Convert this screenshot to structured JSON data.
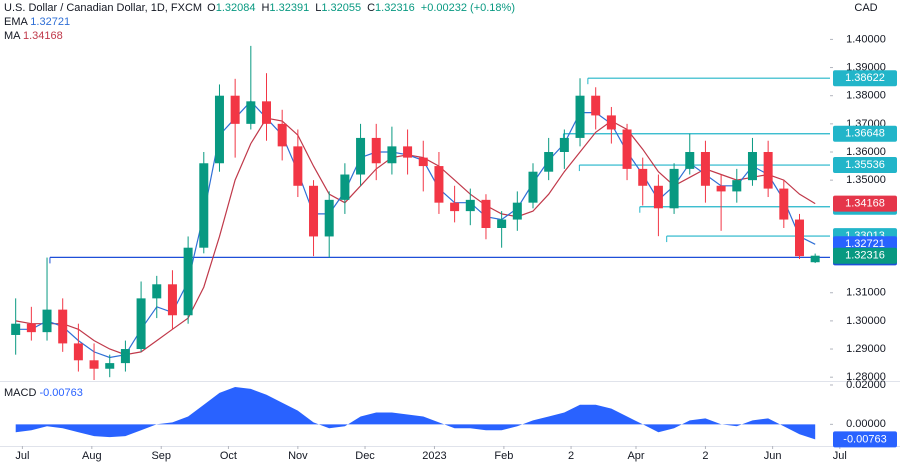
{
  "chart_data": {
    "type": "candlestick",
    "title": "U.S. Dollar / Canadian Dollar, 1D, FXCM",
    "currency": "CAD",
    "ohlc_labels": [
      "O",
      "H",
      "L",
      "C"
    ],
    "change": "+0.00232 (+0.18%)",
    "x": [
      -3,
      4,
      11,
      18,
      25,
      32,
      39,
      46,
      53,
      60,
      67,
      74,
      81,
      88,
      95,
      102,
      109,
      116,
      123,
      130,
      137,
      144,
      151,
      158,
      165,
      172,
      179,
      186,
      193,
      200,
      207,
      214,
      221,
      228,
      235,
      242,
      249,
      256,
      263,
      270,
      277,
      284,
      291,
      298,
      305,
      312,
      319,
      326,
      333,
      340,
      347,
      354
    ],
    "xlim": [
      -10,
      370
    ],
    "xticks": [
      {
        "value": 0,
        "label": "Jul"
      },
      {
        "value": 31,
        "label": "Aug"
      },
      {
        "value": 62,
        "label": "Sep"
      },
      {
        "value": 92,
        "label": "Oct"
      },
      {
        "value": 123,
        "label": "Nov"
      },
      {
        "value": 153,
        "label": "Dec"
      },
      {
        "value": 184,
        "label": "2023"
      },
      {
        "value": 215,
        "label": "Feb"
      },
      {
        "value": 245,
        "label": "2"
      },
      {
        "value": 274,
        "label": "Apr"
      },
      {
        "value": 305,
        "label": "2"
      },
      {
        "value": 335,
        "label": "Jun"
      },
      {
        "value": 365,
        "label": "Jul"
      }
    ],
    "ylim": [
      1.279,
      1.414
    ],
    "yticks": [
      {
        "value": 1.4,
        "label": "1.40000"
      },
      {
        "value": 1.39,
        "label": "1.39000"
      },
      {
        "value": 1.38,
        "label": "1.38000"
      },
      {
        "value": 1.37,
        "label": "1.37000"
      },
      {
        "value": 1.36,
        "label": "1.36000"
      },
      {
        "value": 1.35,
        "label": "1.35000"
      },
      {
        "value": 1.31,
        "label": "1.31000"
      },
      {
        "value": 1.3,
        "label": "1.30000"
      },
      {
        "value": 1.29,
        "label": "1.29000"
      },
      {
        "value": 1.28,
        "label": "1.28000"
      }
    ],
    "candles": {
      "up_color": "#089981",
      "down_color": "#f23645",
      "last_color": "#089981",
      "open": [
        1.295,
        1.299,
        1.296,
        1.304,
        1.292,
        1.286,
        1.283,
        1.285,
        1.29,
        1.308,
        1.313,
        1.302,
        1.326,
        1.356,
        1.38,
        1.37,
        1.378,
        1.37,
        1.362,
        1.348,
        1.33,
        1.343,
        1.352,
        1.365,
        1.356,
        1.362,
        1.358,
        1.355,
        1.342,
        1.339,
        1.343,
        1.333,
        1.336,
        1.342,
        1.353,
        1.36,
        1.365,
        1.38,
        1.373,
        1.368,
        1.354,
        1.348,
        1.34,
        1.354,
        1.36,
        1.348,
        1.346,
        1.35,
        1.36,
        1.347,
        1.336,
        1.32084
      ],
      "high": [
        1.308,
        1.305,
        1.3225,
        1.308,
        1.299,
        1.292,
        1.288,
        1.293,
        1.314,
        1.316,
        1.318,
        1.33,
        1.36,
        1.384,
        1.386,
        1.3977,
        1.388,
        1.375,
        1.368,
        1.35,
        1.346,
        1.356,
        1.37,
        1.37,
        1.369,
        1.368,
        1.364,
        1.36,
        1.348,
        1.347,
        1.345,
        1.339,
        1.346,
        1.356,
        1.365,
        1.368,
        1.3862,
        1.383,
        1.376,
        1.37,
        1.358,
        1.352,
        1.356,
        1.3665,
        1.364,
        1.352,
        1.354,
        1.365,
        1.364,
        1.35,
        1.338,
        1.32391
      ],
      "low": [
        1.288,
        1.293,
        1.293,
        1.289,
        1.282,
        1.279,
        1.28,
        1.282,
        1.289,
        1.301,
        1.297,
        1.299,
        1.324,
        1.353,
        1.358,
        1.368,
        1.364,
        1.357,
        1.344,
        1.323,
        1.3225,
        1.338,
        1.348,
        1.35,
        1.352,
        1.352,
        1.346,
        1.338,
        1.335,
        1.334,
        1.329,
        1.326,
        1.332,
        1.34,
        1.35,
        1.354,
        1.362,
        1.368,
        1.363,
        1.35,
        1.341,
        1.3301,
        1.338,
        1.352,
        1.342,
        1.332,
        1.342,
        1.348,
        1.344,
        1.333,
        1.322,
        1.32055
      ],
      "close": [
        1.299,
        1.296,
        1.304,
        1.292,
        1.286,
        1.283,
        1.285,
        1.29,
        1.308,
        1.313,
        1.302,
        1.326,
        1.356,
        1.38,
        1.37,
        1.378,
        1.37,
        1.362,
        1.348,
        1.33,
        1.343,
        1.352,
        1.365,
        1.356,
        1.362,
        1.358,
        1.355,
        1.342,
        1.339,
        1.343,
        1.333,
        1.336,
        1.342,
        1.353,
        1.36,
        1.365,
        1.38,
        1.373,
        1.368,
        1.354,
        1.348,
        1.34,
        1.354,
        1.36,
        1.348,
        1.346,
        1.35,
        1.36,
        1.347,
        1.336,
        1.323,
        1.32316
      ]
    },
    "series": [
      {
        "name": "EMA",
        "color": "#2f6fd6",
        "values": [
          1.297,
          1.297,
          1.3,
          1.298,
          1.293,
          1.289,
          1.287,
          1.288,
          1.297,
          1.305,
          1.303,
          1.314,
          1.338,
          1.366,
          1.372,
          1.378,
          1.372,
          1.366,
          1.353,
          1.338,
          1.338,
          1.346,
          1.358,
          1.36,
          1.36,
          1.359,
          1.357,
          1.347,
          1.342,
          1.342,
          1.337,
          1.336,
          1.34,
          1.349,
          1.357,
          1.363,
          1.374,
          1.374,
          1.37,
          1.36,
          1.352,
          1.343,
          1.348,
          1.356,
          1.352,
          1.348,
          1.348,
          1.355,
          1.352,
          1.343,
          1.33,
          1.32721
        ]
      },
      {
        "name": "MA",
        "color": "#c0394a",
        "values": [
          1.3,
          1.299,
          1.299,
          1.299,
          1.297,
          1.293,
          1.29,
          1.288,
          1.289,
          1.293,
          1.297,
          1.301,
          1.312,
          1.33,
          1.35,
          1.363,
          1.372,
          1.371,
          1.366,
          1.355,
          1.345,
          1.342,
          1.348,
          1.354,
          1.358,
          1.359,
          1.358,
          1.355,
          1.35,
          1.345,
          1.341,
          1.338,
          1.337,
          1.339,
          1.345,
          1.353,
          1.36,
          1.367,
          1.371,
          1.368,
          1.361,
          1.353,
          1.348,
          1.351,
          1.354,
          1.352,
          1.35,
          1.351,
          1.352,
          1.35,
          1.345,
          1.34168
        ]
      }
    ],
    "levels": [
      {
        "value": 1.38622,
        "x_start": 252.5,
        "color": "#22b5c9"
      },
      {
        "value": 1.36648,
        "x_start": 241.6,
        "color": "#22b5c9"
      },
      {
        "value": 1.35536,
        "x_start": 248.7,
        "color": "#22b5c9"
      },
      {
        "value": 1.34056,
        "x_start": 275.7,
        "color": "#22b5c9"
      },
      {
        "value": 1.33013,
        "x_start": 287.7,
        "color": "#22b5c9"
      },
      {
        "value": 1.32256,
        "x_start": 12.3,
        "color": "#1e4fd8"
      }
    ],
    "indicator": {
      "type": "area",
      "name": "MACD",
      "color": "#2962ff",
      "values": [
        -0.004,
        -0.003,
        -0.001,
        -0.002,
        -0.004,
        -0.006,
        -0.0065,
        -0.006,
        -0.003,
        0.0,
        0.001,
        0.004,
        0.01,
        0.016,
        0.019,
        0.018,
        0.015,
        0.011,
        0.007,
        0.001,
        -0.002,
        -0.001,
        0.004,
        0.006,
        0.006,
        0.005,
        0.004,
        0.001,
        -0.002,
        -0.002,
        -0.003,
        -0.003,
        -0.001,
        0.002,
        0.004,
        0.006,
        0.01,
        0.01,
        0.008,
        0.004,
        0.0,
        -0.004,
        -0.002,
        0.002,
        0.003,
        0.0,
        -0.001,
        0.002,
        0.003,
        -0.001,
        -0.005,
        -0.00763
      ],
      "ylim": [
        -0.0105,
        0.0205
      ],
      "yticks": [
        {
          "value": 0.02,
          "label": "0.02000"
        },
        {
          "value": 0,
          "label": "0.00000"
        }
      ]
    }
  }
}
